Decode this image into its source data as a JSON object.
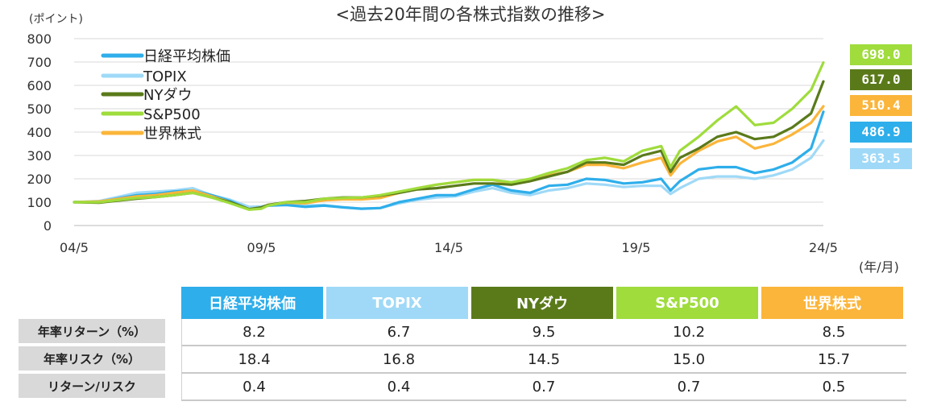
{
  "chart_data": {
    "type": "line",
    "title": "<過去20年間の各株式指数の推移>",
    "ylabel": "(ポイント)",
    "xlabel": "(年/月)",
    "ylim": [
      0,
      800
    ],
    "yticks": [
      0,
      100,
      200,
      300,
      400,
      500,
      600,
      700,
      800
    ],
    "xticks": [
      "04/5",
      "09/5",
      "14/5",
      "19/5",
      "24/5"
    ],
    "x": [
      2004.33,
      2005.0,
      2006.0,
      2006.5,
      2007.0,
      2007.5,
      2008.0,
      2008.5,
      2009.0,
      2009.33,
      2009.5,
      2010.0,
      2010.5,
      2011.0,
      2011.5,
      2012.0,
      2012.5,
      2013.0,
      2013.5,
      2014.0,
      2014.5,
      2015.0,
      2015.5,
      2016.0,
      2016.5,
      2017.0,
      2017.5,
      2018.0,
      2018.5,
      2019.0,
      2019.5,
      2020.0,
      2020.25,
      2020.5,
      2021.0,
      2021.5,
      2022.0,
      2022.5,
      2023.0,
      2023.5,
      2024.0,
      2024.33
    ],
    "grid": "horizontal",
    "legend_position": "top-left",
    "series": [
      {
        "name": "日経平均株価",
        "color": "#2eaeea",
        "final": 486.9,
        "values": [
          100,
          102,
          130,
          135,
          145,
          150,
          130,
          105,
          70,
          78,
          85,
          88,
          80,
          85,
          78,
          72,
          75,
          100,
          115,
          130,
          130,
          155,
          175,
          150,
          140,
          170,
          175,
          200,
          195,
          180,
          185,
          200,
          150,
          190,
          240,
          250,
          250,
          225,
          240,
          270,
          330,
          486.9
        ]
      },
      {
        "name": "TOPIX",
        "color": "#9fd9f7",
        "final": 363.5,
        "values": [
          100,
          105,
          140,
          145,
          150,
          160,
          130,
          110,
          80,
          82,
          85,
          90,
          85,
          88,
          78,
          72,
          75,
          95,
          110,
          120,
          125,
          145,
          160,
          140,
          130,
          150,
          160,
          180,
          175,
          165,
          170,
          170,
          135,
          160,
          200,
          210,
          210,
          200,
          215,
          240,
          290,
          363.5
        ]
      },
      {
        "name": "NYダウ",
        "color": "#5a7a1a",
        "final": 617.0,
        "values": [
          100,
          98,
          115,
          122,
          130,
          140,
          120,
          100,
          70,
          78,
          88,
          100,
          105,
          115,
          120,
          120,
          128,
          140,
          155,
          160,
          170,
          180,
          180,
          175,
          190,
          210,
          230,
          270,
          270,
          260,
          300,
          320,
          230,
          290,
          330,
          380,
          400,
          370,
          380,
          420,
          480,
          617.0
        ]
      },
      {
        "name": "S&P500",
        "color": "#9fdc3c",
        "final": 698.0,
        "values": [
          100,
          100,
          118,
          122,
          130,
          140,
          120,
          95,
          68,
          72,
          85,
          100,
          100,
          115,
          118,
          120,
          130,
          145,
          160,
          175,
          185,
          195,
          195,
          185,
          200,
          225,
          245,
          280,
          290,
          275,
          320,
          340,
          250,
          320,
          380,
          450,
          510,
          430,
          440,
          500,
          580,
          698.0
        ]
      },
      {
        "name": "世界株式",
        "color": "#fbb53a",
        "final": 510.4,
        "values": [
          100,
          103,
          125,
          130,
          140,
          150,
          125,
          100,
          70,
          75,
          88,
          98,
          95,
          108,
          112,
          112,
          118,
          140,
          160,
          175,
          185,
          195,
          195,
          180,
          190,
          215,
          230,
          260,
          260,
          245,
          270,
          290,
          215,
          265,
          320,
          360,
          380,
          330,
          350,
          390,
          440,
          510.4
        ]
      }
    ]
  },
  "table": {
    "columns": [
      "日経平均株価",
      "TOPIX",
      "NYダウ",
      "S&P500",
      "世界株式"
    ],
    "column_colors": [
      "#2eaeea",
      "#9fd9f7",
      "#5a7a1a",
      "#9fdc3c",
      "#fbb53a"
    ],
    "rows": [
      {
        "label": "年率リターン（%）",
        "values": [
          "8.2",
          "6.7",
          "9.5",
          "10.2",
          "8.5"
        ]
      },
      {
        "label": "年率リスク（%）",
        "values": [
          "18.4",
          "16.8",
          "14.5",
          "15.0",
          "15.7"
        ]
      },
      {
        "label": "リターン/リスク",
        "values": [
          "0.4",
          "0.4",
          "0.7",
          "0.7",
          "0.5"
        ]
      }
    ]
  },
  "badges": [
    {
      "text": "698.0",
      "color": "#9fdc3c"
    },
    {
      "text": "617.0",
      "color": "#5a7a1a"
    },
    {
      "text": "510.4",
      "color": "#fbb53a"
    },
    {
      "text": "486.9",
      "color": "#2eaeea"
    },
    {
      "text": "363.5",
      "color": "#9fd9f7"
    }
  ]
}
